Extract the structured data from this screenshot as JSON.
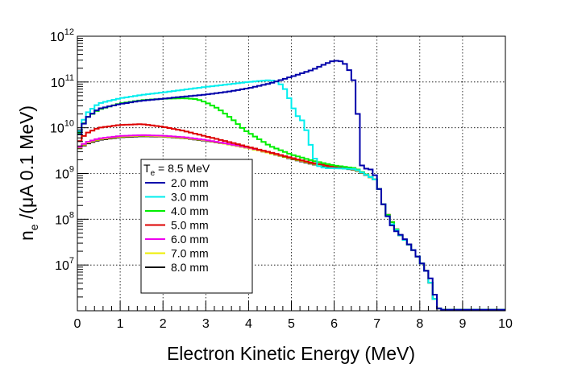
{
  "chart_data": {
    "type": "line",
    "xlabel": "Electron Kinetic Energy (MeV)",
    "ylabel": "n_e /(μA 0.1 MeV)",
    "ylabel_parts": {
      "symbol": "n",
      "subscript": "e",
      "rest": " /(μA 0.1 MeV)"
    },
    "xlim": [
      0,
      10
    ],
    "ylim": [
      1000000.0,
      1000000000000.0
    ],
    "y_scale": "log",
    "grid": true,
    "x_ticks": [
      "0",
      "1",
      "2",
      "3",
      "4",
      "5",
      "6",
      "7",
      "8",
      "9",
      "10"
    ],
    "y_ticks": [
      {
        "base": "10",
        "exp": "7",
        "value": 10000000.0
      },
      {
        "base": "10",
        "exp": "8",
        "value": 100000000.0
      },
      {
        "base": "10",
        "exp": "9",
        "value": 1000000000.0
      },
      {
        "base": "10",
        "exp": "10",
        "value": 10000000000.0
      },
      {
        "base": "10",
        "exp": "11",
        "value": 100000000000.0
      },
      {
        "base": "10",
        "exp": "12",
        "value": 1000000000000.0
      }
    ],
    "legend": {
      "placement": "center-left",
      "header": {
        "symbol": "T",
        "subscript": "e",
        "rest": " = 8.5 MeV"
      }
    },
    "series": [
      {
        "name": "2.0 mm",
        "color": "#0000aa",
        "points": [
          [
            0,
            5500000000.0
          ],
          [
            0.2,
            16000000000.0
          ],
          [
            0.5,
            26000000000.0
          ],
          [
            1,
            33000000000.0
          ],
          [
            1.5,
            39000000000.0
          ],
          [
            2,
            43000000000.0
          ],
          [
            2.5,
            48000000000.0
          ],
          [
            3,
            53000000000.0
          ],
          [
            3.5,
            61000000000.0
          ],
          [
            4,
            73000000000.0
          ],
          [
            4.5,
            93000000000.0
          ],
          [
            5,
            130000000000.0
          ],
          [
            5.5,
            185000000000.0
          ],
          [
            5.8,
            250000000000.0
          ],
          [
            6,
            295000000000.0
          ],
          [
            6.2,
            280000000000.0
          ],
          [
            6.3,
            220000000000.0
          ],
          [
            6.4,
            150000000000.0
          ],
          [
            6.5,
            80000000000.0
          ],
          [
            6.6,
            5000000000.0
          ],
          [
            6.65,
            1500000000.0
          ],
          [
            6.7,
            1300000000.0
          ],
          [
            6.8,
            1250000000.0
          ],
          [
            6.9,
            1200000000.0
          ],
          [
            7,
            700000000.0
          ],
          [
            7.1,
            300000000.0
          ],
          [
            7.2,
            150000000.0
          ],
          [
            7.3,
            90000000.0
          ],
          [
            7.4,
            60000000.0
          ],
          [
            7.5,
            50000000.0
          ],
          [
            7.6,
            42000000.0
          ],
          [
            7.7,
            32000000.0
          ],
          [
            7.8,
            25000000.0
          ],
          [
            7.9,
            18000000.0
          ],
          [
            8,
            13000000.0
          ],
          [
            8.1,
            9000000.0
          ],
          [
            8.2,
            6200000.0
          ],
          [
            8.3,
            4200000.0
          ],
          [
            8.4,
            1200000.0
          ],
          [
            8.5,
            1050000.0
          ],
          [
            10,
            1050000.0
          ]
        ]
      },
      {
        "name": "3.0 mm",
        "color": "#00eeee",
        "points": [
          [
            0,
            6300000000.0
          ],
          [
            0.2,
            20000000000.0
          ],
          [
            0.5,
            34000000000.0
          ],
          [
            1,
            44000000000.0
          ],
          [
            1.5,
            52000000000.0
          ],
          [
            2,
            59000000000.0
          ],
          [
            2.5,
            68000000000.0
          ],
          [
            3,
            78000000000.0
          ],
          [
            3.5,
            88000000000.0
          ],
          [
            4,
            100000000000.0
          ],
          [
            4.5,
            110000000000.0
          ],
          [
            4.7,
            100000000000.0
          ],
          [
            4.85,
            70000000000.0
          ],
          [
            5,
            35000000000.0
          ],
          [
            5.1,
            20000000000.0
          ],
          [
            5.3,
            13000000000.0
          ],
          [
            5.4,
            6000000000.0
          ],
          [
            5.5,
            3000000000.0
          ],
          [
            5.6,
            1500000000.0
          ],
          [
            5.8,
            1300000000.0
          ],
          [
            6,
            1300000000.0
          ],
          [
            6.5,
            1250000000.0
          ],
          [
            7,
            700000000.0
          ],
          [
            7.1,
            300000000.0
          ],
          [
            7.2,
            150000000.0
          ],
          [
            7.3,
            90000000.0
          ],
          [
            7.5,
            50000000.0
          ],
          [
            7.8,
            25000000.0
          ],
          [
            8,
            13000000.0
          ],
          [
            8.2,
            6200000.0
          ],
          [
            8.4,
            1200000.0
          ],
          [
            8.5,
            1050000.0
          ],
          [
            10,
            1050000.0
          ]
        ]
      },
      {
        "name": "4.0 mm",
        "color": "#00ee00",
        "points": [
          [
            0,
            6000000000.0
          ],
          [
            0.2,
            16000000000.0
          ],
          [
            0.5,
            25000000000.0
          ],
          [
            1,
            34000000000.0
          ],
          [
            1.5,
            40000000000.0
          ],
          [
            2,
            43000000000.0
          ],
          [
            2.5,
            44000000000.0
          ],
          [
            2.8,
            42000000000.0
          ],
          [
            3,
            36000000000.0
          ],
          [
            3.3,
            26000000000.0
          ],
          [
            3.6,
            16000000000.0
          ],
          [
            3.9,
            9000000000.0
          ],
          [
            4.2,
            6000000000.0
          ],
          [
            4.5,
            4000000000.0
          ],
          [
            5,
            2600000000.0
          ],
          [
            5.5,
            1900000000.0
          ],
          [
            6,
            1500000000.0
          ],
          [
            6.5,
            1300000000.0
          ],
          [
            7,
            700000000.0
          ],
          [
            7.1,
            300000000.0
          ],
          [
            7.2,
            150000000.0
          ],
          [
            7.5,
            50000000.0
          ],
          [
            7.8,
            25000000.0
          ],
          [
            8,
            13000000.0
          ],
          [
            8.2,
            6200000.0
          ],
          [
            8.4,
            1200000.0
          ],
          [
            8.5,
            1050000.0
          ],
          [
            10,
            1050000.0
          ]
        ]
      },
      {
        "name": "5.0 mm",
        "color": "#dd0000",
        "points": [
          [
            0,
            4500000000.0
          ],
          [
            0.2,
            7500000000.0
          ],
          [
            0.5,
            10000000000.0
          ],
          [
            1,
            11500000000.0
          ],
          [
            1.5,
            12000000000.0
          ],
          [
            2,
            10500000000.0
          ],
          [
            2.5,
            8500000000.0
          ],
          [
            3,
            6500000000.0
          ],
          [
            3.5,
            5000000000.0
          ],
          [
            4,
            3800000000.0
          ],
          [
            4.5,
            2900000000.0
          ],
          [
            5,
            2200000000.0
          ],
          [
            5.5,
            1700000000.0
          ],
          [
            6,
            1400000000.0
          ],
          [
            6.5,
            1250000000.0
          ],
          [
            7,
            700000000.0
          ],
          [
            7.1,
            300000000.0
          ],
          [
            7.2,
            150000000.0
          ],
          [
            7.5,
            50000000.0
          ],
          [
            7.8,
            25000000.0
          ],
          [
            8,
            13000000.0
          ],
          [
            8.2,
            6200000.0
          ],
          [
            8.4,
            1200000.0
          ],
          [
            8.5,
            1050000.0
          ],
          [
            10,
            1050000.0
          ]
        ]
      },
      {
        "name": "6.0 mm",
        "color": "#ee00ee",
        "points": [
          [
            0,
            3500000000.0
          ],
          [
            0.2,
            4800000000.0
          ],
          [
            0.5,
            5800000000.0
          ],
          [
            1,
            6600000000.0
          ],
          [
            1.5,
            6900000000.0
          ],
          [
            2,
            6700000000.0
          ],
          [
            2.5,
            6200000000.0
          ],
          [
            3,
            5400000000.0
          ],
          [
            3.5,
            4500000000.0
          ],
          [
            4,
            3700000000.0
          ],
          [
            4.5,
            2900000000.0
          ],
          [
            5,
            2200000000.0
          ],
          [
            5.5,
            1700000000.0
          ],
          [
            6,
            1400000000.0
          ],
          [
            6.5,
            1250000000.0
          ],
          [
            7,
            700000000.0
          ],
          [
            7.1,
            300000000.0
          ],
          [
            7.2,
            150000000.0
          ],
          [
            7.5,
            50000000.0
          ],
          [
            7.8,
            25000000.0
          ],
          [
            8,
            13000000.0
          ],
          [
            8.2,
            6200000.0
          ],
          [
            8.4,
            1200000.0
          ],
          [
            8.5,
            1050000.0
          ],
          [
            10,
            1050000.0
          ]
        ]
      },
      {
        "name": "7.0 mm",
        "color": "#eeee00",
        "points": [
          [
            0,
            3400000000.0
          ],
          [
            0.2,
            4600000000.0
          ],
          [
            0.5,
            5600000000.0
          ],
          [
            1,
            6400000000.0
          ],
          [
            1.5,
            6700000000.0
          ],
          [
            2,
            6500000000.0
          ],
          [
            2.5,
            6000000000.0
          ],
          [
            3,
            5300000000.0
          ],
          [
            3.5,
            4400000000.0
          ],
          [
            4,
            3600000000.0
          ],
          [
            4.5,
            2800000000.0
          ],
          [
            5,
            2150000000.0
          ],
          [
            5.5,
            1650000000.0
          ],
          [
            6,
            1380000000.0
          ],
          [
            6.5,
            1220000000.0
          ],
          [
            7,
            700000000.0
          ],
          [
            7.1,
            300000000.0
          ],
          [
            7.2,
            150000000.0
          ],
          [
            7.5,
            50000000.0
          ],
          [
            7.8,
            25000000.0
          ],
          [
            8,
            13000000.0
          ],
          [
            8.2,
            6200000.0
          ],
          [
            8.4,
            1200000.0
          ],
          [
            8.5,
            1050000.0
          ],
          [
            10,
            1050000.0
          ]
        ]
      },
      {
        "name": "8.0 mm",
        "color": "#000000",
        "points": [
          [
            0,
            3300000000.0
          ],
          [
            0.2,
            4400000000.0
          ],
          [
            0.5,
            5400000000.0
          ],
          [
            1,
            6200000000.0
          ],
          [
            1.5,
            6500000000.0
          ],
          [
            2,
            6400000000.0
          ],
          [
            2.5,
            5900000000.0
          ],
          [
            3,
            5200000000.0
          ],
          [
            3.5,
            4400000000.0
          ],
          [
            4,
            3600000000.0
          ],
          [
            4.5,
            2800000000.0
          ],
          [
            5,
            2100000000.0
          ],
          [
            5.5,
            1600000000.0
          ],
          [
            6,
            1350000000.0
          ],
          [
            6.5,
            1200000000.0
          ],
          [
            7,
            700000000.0
          ],
          [
            7.1,
            300000000.0
          ],
          [
            7.2,
            150000000.0
          ],
          [
            7.5,
            50000000.0
          ],
          [
            7.8,
            25000000.0
          ],
          [
            8,
            13000000.0
          ],
          [
            8.2,
            6200000.0
          ],
          [
            8.4,
            1200000.0
          ],
          [
            8.5,
            1050000.0
          ],
          [
            10,
            1050000.0
          ]
        ]
      }
    ]
  }
}
